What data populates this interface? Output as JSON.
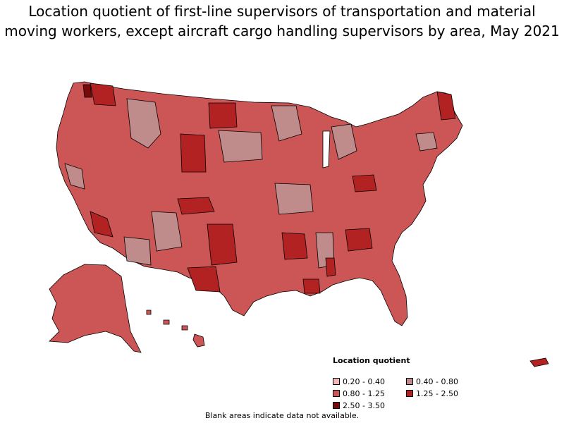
{
  "title": "Location quotient of first-line supervisors of transportation and material moving workers, except aircraft cargo handling supervisors by area, May 2021",
  "legend": {
    "title": "Location quotient",
    "items": [
      {
        "label": "0.20 - 0.40",
        "color": "#f2b8b8"
      },
      {
        "label": "0.40 - 0.80",
        "color": "#c08b8b"
      },
      {
        "label": "0.80 - 1.25",
        "color": "#cc5555"
      },
      {
        "label": "1.25 - 2.50",
        "color": "#b22222"
      },
      {
        "label": "2.50 - 3.50",
        "color": "#7a0a0a"
      }
    ]
  },
  "footnote": "Blank areas indicate data not available.",
  "colors": {
    "low": "#f2b8b8",
    "lowmid": "#c08b8b",
    "mid": "#cc5555",
    "high": "#b22222",
    "vhigh": "#7a0a0a",
    "border": "#000000"
  }
}
